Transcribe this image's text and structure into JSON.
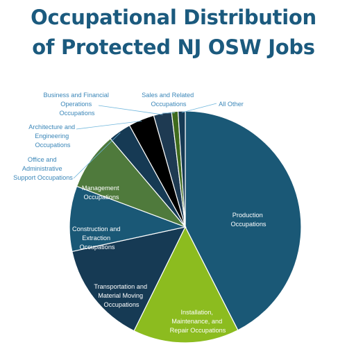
{
  "chart_data": {
    "type": "pie",
    "title_lines": [
      "Occupational Distribution",
      "of Protected NJ OSW Jobs"
    ],
    "slices": [
      {
        "label": "Production Occupations",
        "value": 42.5,
        "color": "#1a5876"
      },
      {
        "label": "Installation, Maintenance, and Repair Occupations",
        "value": 14.8,
        "color": "#8cbc1f"
      },
      {
        "label": "Transportation and Material Moving Occupations",
        "value": 14.3,
        "color": "#163a54"
      },
      {
        "label": "Construction and Extraction Occupations",
        "value": 9.1,
        "color": "#1a5876"
      },
      {
        "label": "Management Occupations",
        "value": 8.1,
        "color": "#4f7a3c"
      },
      {
        "label": "Office and Administrative Support Occupations",
        "value": 3.2,
        "color": "#163a54"
      },
      {
        "label": "Architecture and Engineering Occupations",
        "value": 3.6,
        "color": "#000000"
      },
      {
        "label": "Business and Financial Operations Occupations",
        "value": 2.5,
        "color": "#1e3a52"
      },
      {
        "label": "Sales and Related Occupations",
        "value": 0.9,
        "color": "#3f6a1d"
      },
      {
        "label": "All Other",
        "value": 1.0,
        "color": "#163a54"
      }
    ],
    "legend": "none"
  },
  "labels": {
    "production": [
      "Production",
      "Occupations"
    ],
    "installation": [
      "Installation,",
      "Maintenance, and",
      "Repair Occupations"
    ],
    "transportation": [
      "Transportation and",
      "Material Moving",
      "Occupations"
    ],
    "construction": [
      "Construction and",
      "Extraction",
      "Occupations"
    ],
    "management": [
      "Management",
      "Occupations"
    ],
    "office": [
      "Office and",
      "Administrative",
      "Support Occupations"
    ],
    "architecture": [
      "Architecture and",
      "Engineering",
      "Occupations"
    ],
    "business": [
      "Business and Financial",
      "Operations",
      "Occupations"
    ],
    "sales": [
      "Sales and Related",
      "Occupations"
    ],
    "other": [
      "All Other"
    ]
  }
}
